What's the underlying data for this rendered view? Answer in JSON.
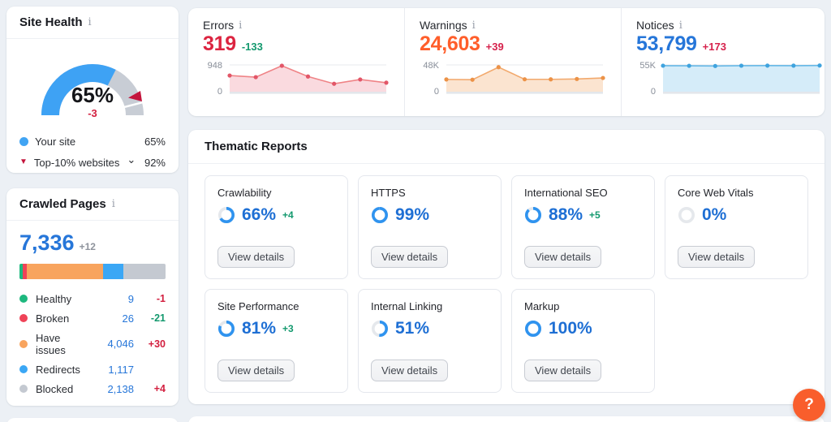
{
  "site_health": {
    "title": "Site Health",
    "gauge": {
      "value_label": "65%",
      "delta": "-3",
      "your_site_pct": 65,
      "benchmark_pct": 92
    },
    "legend": [
      {
        "marker": "blue-dot",
        "label": "Your site",
        "value": "65%",
        "expandable": false
      },
      {
        "marker": "red-triangle-down",
        "label": "Top-10% websites",
        "value": "92%",
        "expandable": true
      }
    ]
  },
  "crawled_pages": {
    "title": "Crawled Pages",
    "total": "7,336",
    "total_delta": "+12",
    "total_delta_color": "#8e939c",
    "categories": [
      {
        "label": "Healthy",
        "color": "#1db87e",
        "value": "9",
        "delta": "-1",
        "delta_color": "#d31f3f",
        "bar_pct": 2.2
      },
      {
        "label": "Broken",
        "color": "#ef4358",
        "value": "26",
        "delta": "-21",
        "delta_color": "#13996e",
        "bar_pct": 3.0
      },
      {
        "label": "Have issues",
        "color": "#f8a45e",
        "value": "4,046",
        "delta": "+30",
        "delta_color": "#d31f3f",
        "bar_pct": 51.8
      },
      {
        "label": "Redirects",
        "color": "#3ba7f5",
        "value": "1,117",
        "delta": "",
        "delta_color": "",
        "bar_pct": 14.0
      },
      {
        "label": "Blocked",
        "color": "#c4c9d1",
        "value": "2,138",
        "delta": "+4",
        "delta_color": "#d31f3f",
        "bar_pct": 29.0
      }
    ]
  },
  "overview_metrics": [
    {
      "label": "Errors",
      "value": "319",
      "value_color": "#dc2440",
      "delta": "-133",
      "delta_color": "#13996e",
      "chart": {
        "type": "area",
        "y_top_label": "948",
        "y_zero_label": "0",
        "ymax": 948,
        "values": [
          573,
          515,
          920,
          538,
          281,
          433,
          319
        ],
        "line_color": "#ef8386",
        "fill_color": "#fadadf",
        "dot_color": "#e25668"
      }
    },
    {
      "label": "Warnings",
      "value": "24,603",
      "value_color": "#ff5e2b",
      "delta": "+39",
      "delta_color": "#d6224c",
      "chart": {
        "type": "area",
        "y_top_label": "48K",
        "y_zero_label": "0",
        "ymax": 48000,
        "values": [
          22000,
          21500,
          44000,
          22300,
          22200,
          22800,
          24603
        ],
        "line_color": "#f2a96d",
        "fill_color": "#fbe4d0",
        "dot_color": "#ec9247"
      }
    },
    {
      "label": "Notices",
      "value": "53,799",
      "value_color": "#2676d9",
      "delta": "+173",
      "delta_color": "#d6224c",
      "chart": {
        "type": "area",
        "y_top_label": "55K",
        "y_zero_label": "0",
        "ymax": 55000,
        "values": [
          53400,
          53200,
          52800,
          53400,
          53600,
          53500,
          53799
        ],
        "line_color": "#66b8e6",
        "fill_color": "#d5ecf9",
        "dot_color": "#3fa3de"
      }
    }
  ],
  "thematic_reports": {
    "title": "Thematic Reports",
    "view_details_label": "View details",
    "donut_color": "#2f93ef",
    "donut_track_color": "#e5e8ec",
    "percent_color": "#1e6fd4",
    "delta_color": "#13996e",
    "cards": [
      {
        "name": "Crawlability",
        "percent": 66,
        "percent_label": "66%",
        "delta": "+4"
      },
      {
        "name": "HTTPS",
        "percent": 99,
        "percent_label": "99%",
        "delta": ""
      },
      {
        "name": "International SEO",
        "percent": 88,
        "percent_label": "88%",
        "delta": "+5"
      },
      {
        "name": "Core Web Vitals",
        "percent": 0,
        "percent_label": "0%",
        "delta": ""
      },
      {
        "name": "Site Performance",
        "percent": 81,
        "percent_label": "81%",
        "delta": "+3"
      },
      {
        "name": "Internal Linking",
        "percent": 51,
        "percent_label": "51%",
        "delta": ""
      },
      {
        "name": "Markup",
        "percent": 100,
        "percent_label": "100%",
        "delta": ""
      }
    ]
  },
  "gauge_colors": {
    "fill": "#3ea2f4",
    "track": "#c8cdd5",
    "marker": "#c4143c",
    "delta": "#d31f3f"
  },
  "info_icon_glyph": "i",
  "help_button": {
    "label": "?"
  }
}
